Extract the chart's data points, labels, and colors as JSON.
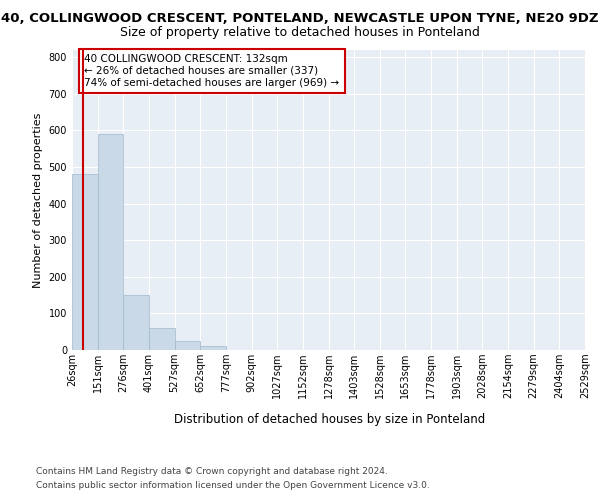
{
  "title": "40, COLLINGWOOD CRESCENT, PONTELAND, NEWCASTLE UPON TYNE, NE20 9DZ",
  "subtitle": "Size of property relative to detached houses in Ponteland",
  "xlabel": "Distribution of detached houses by size in Ponteland",
  "ylabel": "Number of detached properties",
  "bin_labels": [
    "26sqm",
    "151sqm",
    "276sqm",
    "401sqm",
    "527sqm",
    "652sqm",
    "777sqm",
    "902sqm",
    "1027sqm",
    "1152sqm",
    "1278sqm",
    "1403sqm",
    "1528sqm",
    "1653sqm",
    "1778sqm",
    "1903sqm",
    "2028sqm",
    "2154sqm",
    "2279sqm",
    "2404sqm",
    "2529sqm"
  ],
  "bar_values": [
    480,
    590,
    150,
    60,
    25,
    10,
    0,
    0,
    0,
    0,
    0,
    0,
    0,
    0,
    0,
    0,
    0,
    0,
    0,
    0
  ],
  "bar_color": "#c9d9e8",
  "bar_edge_color": "#a0b8cc",
  "vline_color": "#cc0000",
  "ylim": [
    0,
    820
  ],
  "yticks": [
    0,
    100,
    200,
    300,
    400,
    500,
    600,
    700,
    800
  ],
  "annotation_text": "40 COLLINGWOOD CRESCENT: 132sqm\n← 26% of detached houses are smaller (337)\n74% of semi-detached houses are larger (969) →",
  "annotation_box_color": "#ffffff",
  "annotation_box_edge": "#cc0000",
  "footer_line1": "Contains HM Land Registry data © Crown copyright and database right 2024.",
  "footer_line2": "Contains public sector information licensed under the Open Government Licence v3.0.",
  "background_color": "#e8eef5",
  "grid_color": "#ffffff",
  "title_fontsize": 9.5,
  "subtitle_fontsize": 9,
  "xlabel_fontsize": 8.5,
  "ylabel_fontsize": 8,
  "tick_fontsize": 7,
  "annotation_fontsize": 7.5,
  "footer_fontsize": 6.5
}
